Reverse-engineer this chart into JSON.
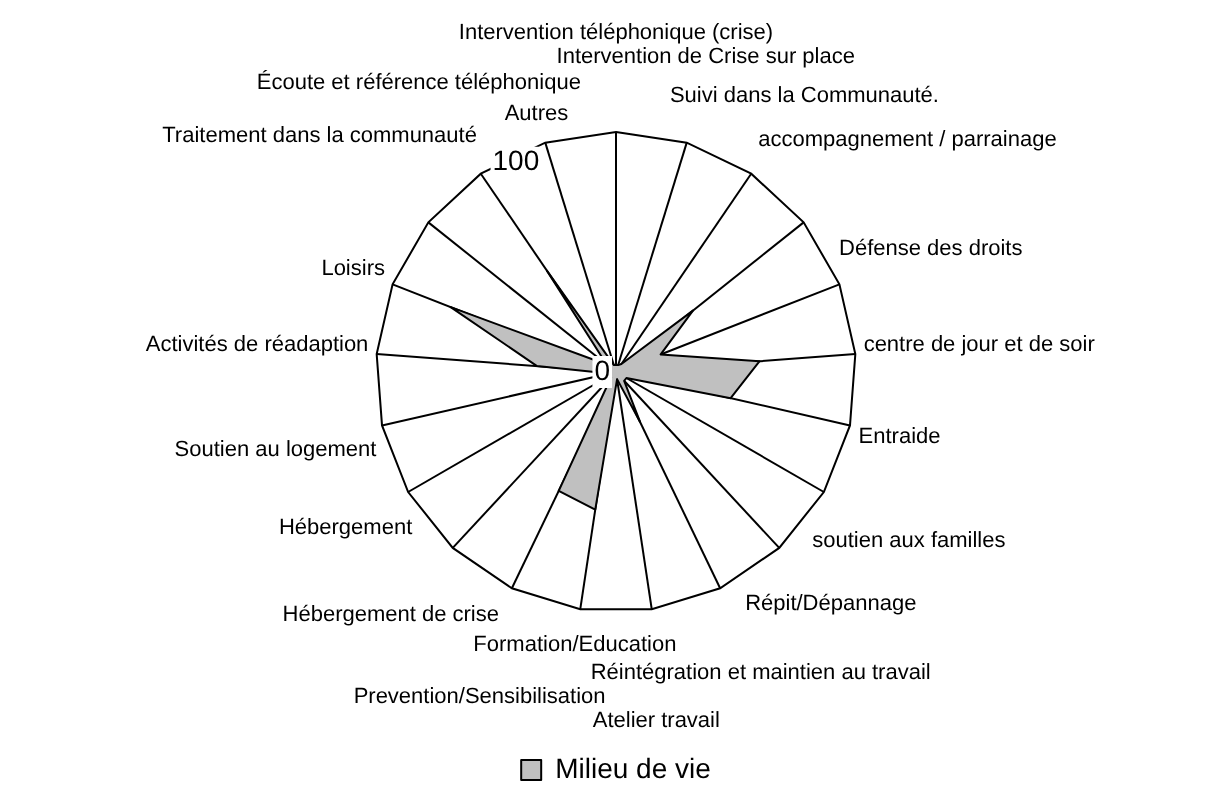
{
  "chart_data": {
    "type": "radar",
    "categories": [
      "Intervention téléphonique (crise)",
      "Intervention de Crise sur place",
      "Suivi dans la Communauté.",
      "accompagnement / parrainage",
      "Défense des droits",
      "centre de jour et de soir",
      "Entraide",
      "soutien aux familles",
      "Répit/Dépannage",
      "Réintégration et maintien au travail",
      "Atelier travail",
      "Formation/Education",
      "Prevention/Sensibilisation",
      "Hébergement de crise",
      "Hébergement",
      "Soutien au logement",
      "Activités de réadaption",
      "Loisirs",
      "Traitement dans la communauté",
      "Écoute et référence téléphonique",
      "Autres"
    ],
    "series": [
      {
        "name": "Milieu de vie",
        "color": "#c0c0c0",
        "values": [
          3,
          3,
          4,
          41,
          20,
          60,
          49,
          5,
          5,
          23,
          3,
          58,
          55,
          3,
          3,
          3,
          33,
          74,
          5,
          51,
          3
        ]
      }
    ],
    "ylim": [
      0,
      100
    ],
    "yticks": [
      0,
      100
    ],
    "grid": true,
    "legend": "bottom",
    "marker": "none",
    "line_style": "solid"
  }
}
